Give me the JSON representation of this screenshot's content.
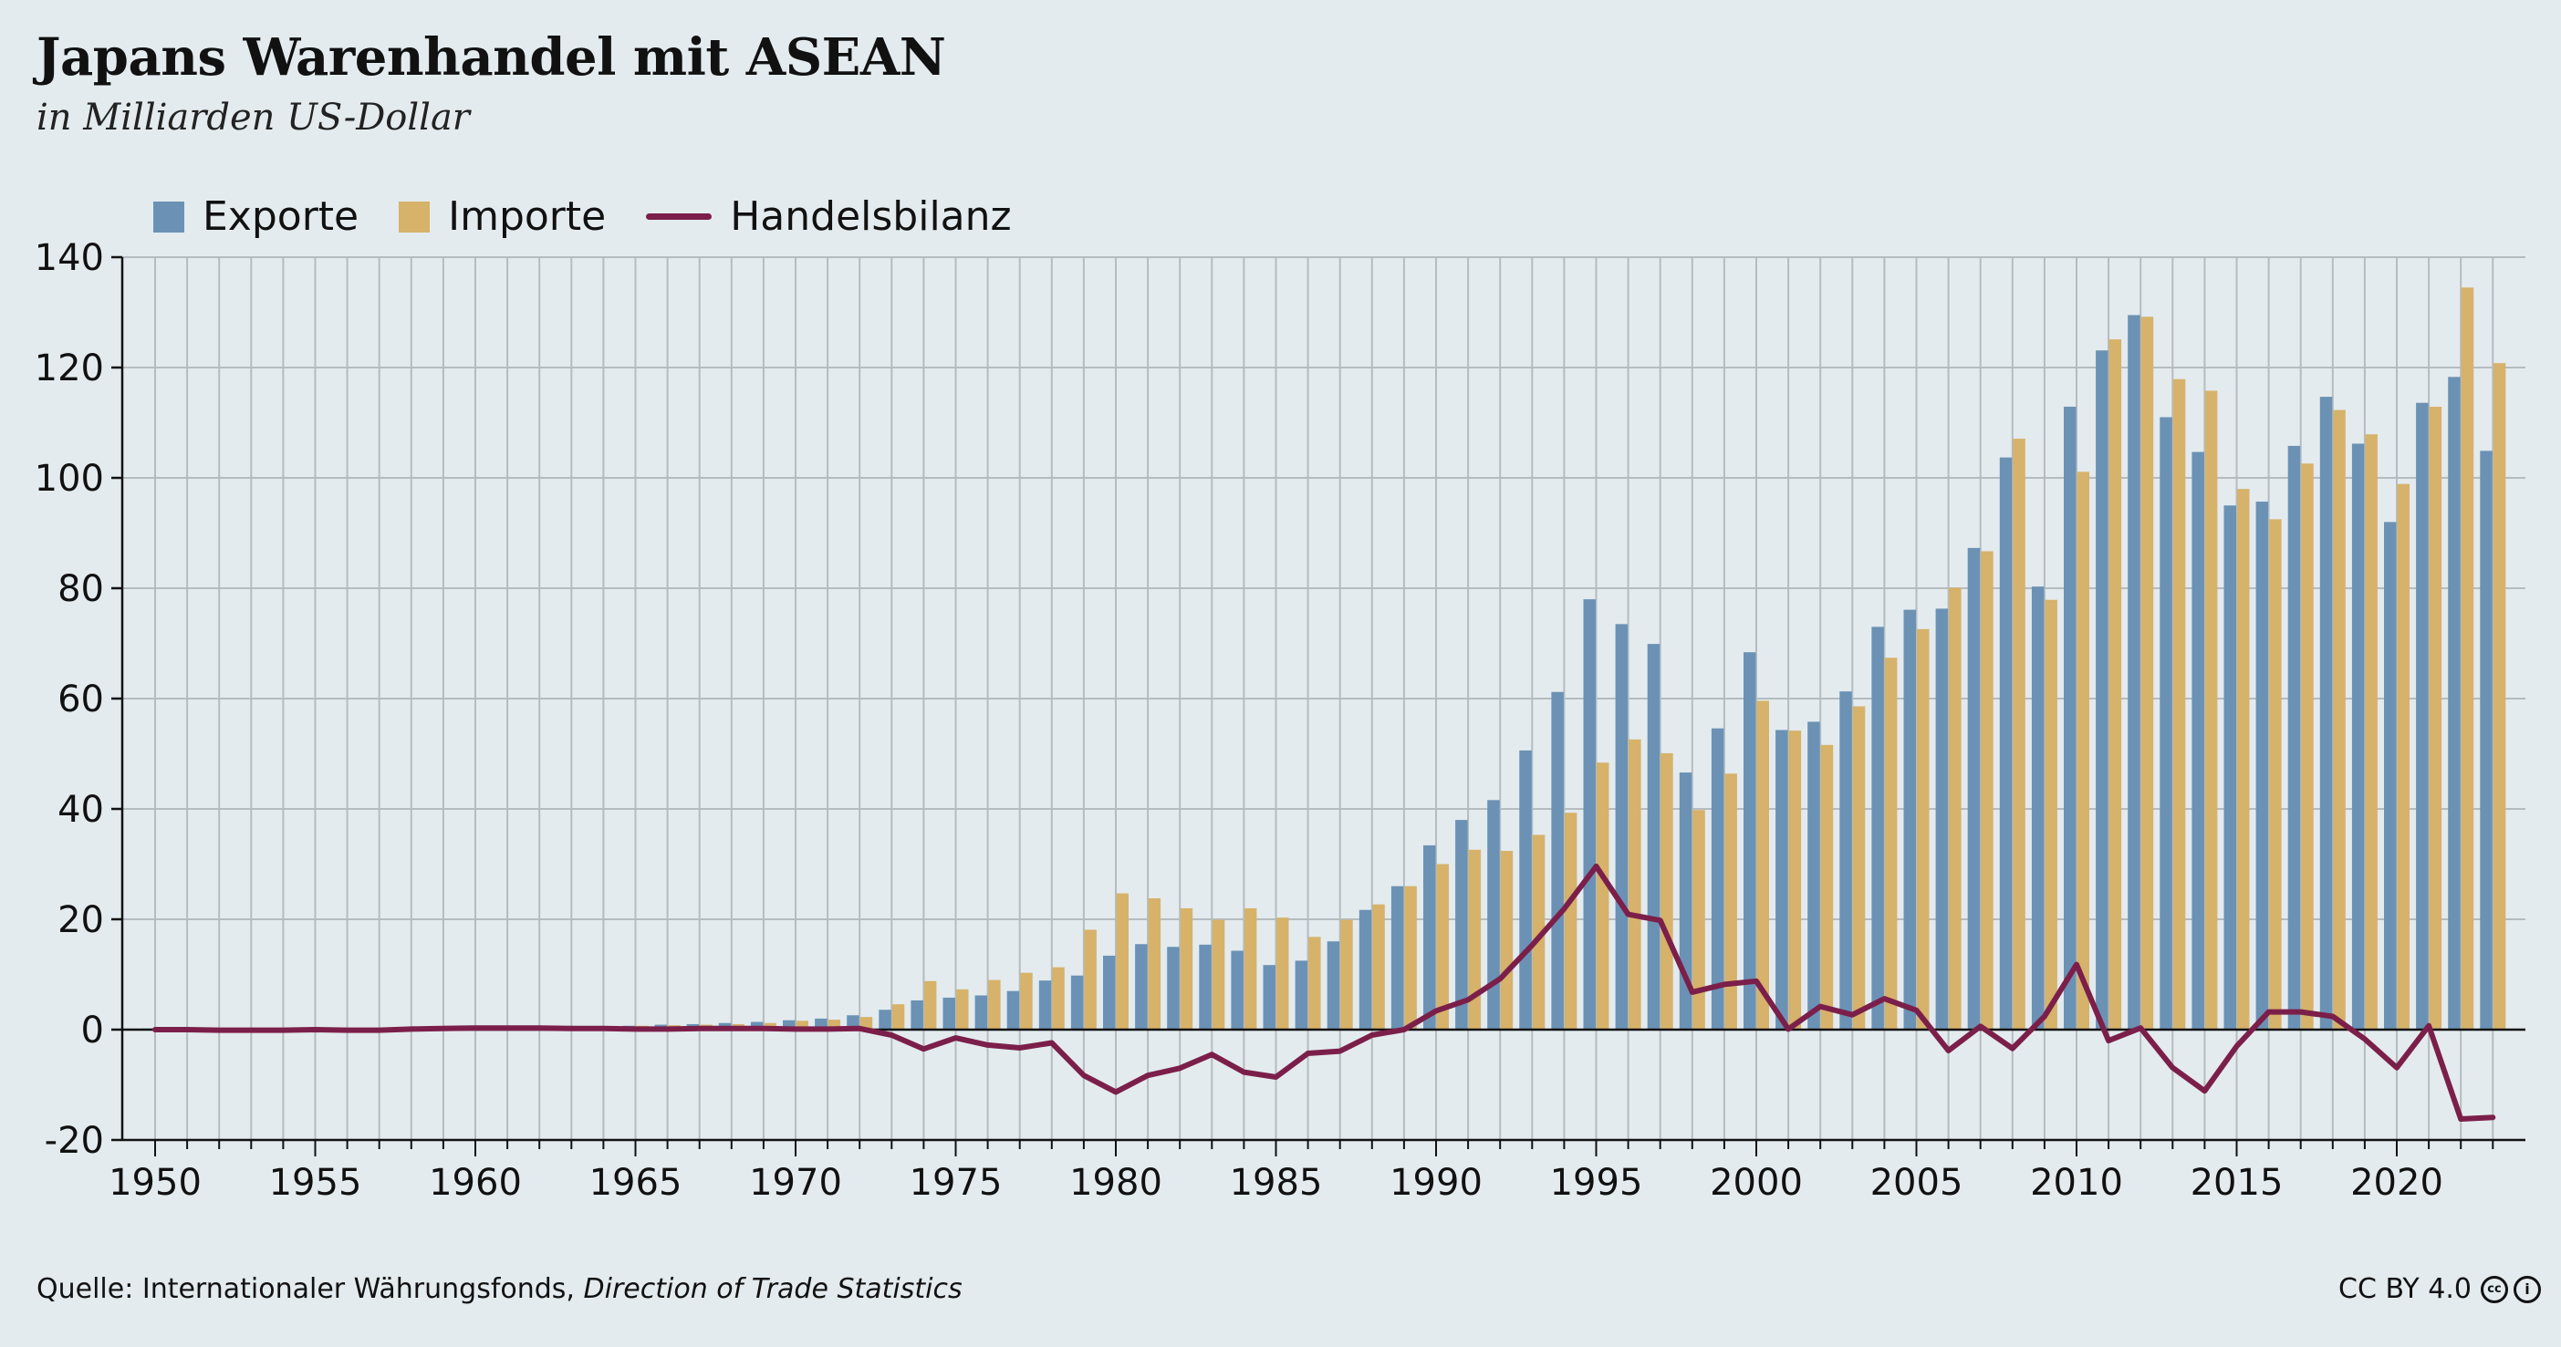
{
  "header": {
    "title": "Japans Warenhandel mit ASEAN",
    "subtitle": "in Milliarden US-Dollar"
  },
  "legend": {
    "exports": "Exporte",
    "imports": "Importe",
    "balance": "Handelsbilanz"
  },
  "colors": {
    "exports": "#6b92b5",
    "imports": "#d6b26a",
    "balance": "#7b1f4a",
    "grid": "#b5bcc0",
    "background": "#e3ebee"
  },
  "footer": {
    "source_prefix": "Quelle: Internationaler Währungsfonds, ",
    "source_title": "Direction of Trade Statistics",
    "license": "CC BY 4.0",
    "cc_icon": "cc-icon",
    "by_icon": "by-icon"
  },
  "chart_data": {
    "type": "bar",
    "xlabel": "",
    "ylabel": "",
    "xlim": [
      1950,
      2023
    ],
    "ylim": [
      -20,
      140
    ],
    "yticks": [
      -20,
      0,
      20,
      40,
      60,
      80,
      100,
      120,
      140
    ],
    "xticks": [
      1950,
      1955,
      1960,
      1965,
      1970,
      1975,
      1980,
      1985,
      1990,
      1995,
      2000,
      2005,
      2010,
      2015,
      2020
    ],
    "grid": true,
    "legend_position": "top-left",
    "x": [
      1950,
      1951,
      1952,
      1953,
      1954,
      1955,
      1956,
      1957,
      1958,
      1959,
      1960,
      1961,
      1962,
      1963,
      1964,
      1965,
      1966,
      1967,
      1968,
      1969,
      1970,
      1971,
      1972,
      1973,
      1974,
      1975,
      1976,
      1977,
      1978,
      1979,
      1980,
      1981,
      1982,
      1983,
      1984,
      1985,
      1986,
      1987,
      1988,
      1989,
      1990,
      1991,
      1992,
      1993,
      1994,
      1995,
      1996,
      1997,
      1998,
      1999,
      2000,
      2001,
      2002,
      2003,
      2004,
      2005,
      2006,
      2007,
      2008,
      2009,
      2010,
      2011,
      2012,
      2013,
      2014,
      2015,
      2016,
      2017,
      2018,
      2019,
      2020,
      2021,
      2022,
      2023
    ],
    "series": [
      {
        "name": "Exporte",
        "kind": "bar",
        "values": [
          0.2,
          0.2,
          0.2,
          0.2,
          0.2,
          0.2,
          0.3,
          0.3,
          0.3,
          0.3,
          0.4,
          0.4,
          0.4,
          0.5,
          0.6,
          0.7,
          0.9,
          1.0,
          1.2,
          1.4,
          1.7,
          2.0,
          2.6,
          3.6,
          5.3,
          5.8,
          6.2,
          7.0,
          8.9,
          9.8,
          13.4,
          15.5,
          15.0,
          15.4,
          14.3,
          11.7,
          12.5,
          16.0,
          21.7,
          26.0,
          33.4,
          38.0,
          41.6,
          50.6,
          61.2,
          78.0,
          73.5,
          69.9,
          46.6,
          54.6,
          68.4,
          54.3,
          55.8,
          61.3,
          73.0,
          76.1,
          76.3,
          87.3,
          103.7,
          80.3,
          112.9,
          123.1,
          129.5,
          111.0,
          104.7,
          95.0,
          95.7,
          105.8,
          114.7,
          106.2,
          92.0,
          113.6,
          118.3,
          104.9
        ]
      },
      {
        "name": "Importe",
        "kind": "bar",
        "values": [
          0.2,
          0.2,
          0.2,
          0.2,
          0.2,
          0.2,
          0.3,
          0.3,
          0.3,
          0.3,
          0.4,
          0.4,
          0.4,
          0.5,
          0.6,
          0.7,
          0.8,
          0.9,
          1.0,
          1.2,
          1.6,
          1.8,
          2.3,
          4.6,
          8.8,
          7.3,
          9.0,
          10.3,
          11.3,
          18.1,
          24.7,
          23.8,
          22.0,
          19.9,
          22.0,
          20.3,
          16.8,
          19.9,
          22.7,
          26.0,
          30.0,
          32.6,
          32.4,
          35.3,
          39.3,
          48.4,
          52.6,
          50.1,
          39.8,
          46.4,
          59.6,
          54.2,
          51.6,
          58.6,
          67.4,
          72.6,
          80.1,
          86.7,
          107.1,
          77.9,
          101.1,
          125.1,
          129.2,
          117.9,
          115.8,
          98.0,
          92.5,
          102.6,
          112.3,
          107.9,
          98.9,
          112.9,
          134.5,
          120.8
        ]
      },
      {
        "name": "Handelsbilanz",
        "kind": "line",
        "values": [
          0.0,
          0.0,
          -0.1,
          -0.1,
          -0.1,
          0.0,
          -0.1,
          -0.1,
          0.1,
          0.2,
          0.3,
          0.3,
          0.3,
          0.2,
          0.2,
          0.1,
          0.1,
          0.2,
          0.2,
          0.2,
          0.1,
          0.1,
          0.2,
          -1.0,
          -3.5,
          -1.5,
          -2.8,
          -3.3,
          -2.4,
          -8.3,
          -11.3,
          -8.3,
          -7.0,
          -4.5,
          -7.7,
          -8.6,
          -4.3,
          -3.9,
          -1.0,
          0.0,
          3.4,
          5.4,
          9.2,
          15.3,
          21.9,
          29.6,
          20.9,
          19.8,
          6.8,
          8.2,
          8.8,
          0.1,
          4.2,
          2.7,
          5.6,
          3.5,
          -3.8,
          0.6,
          -3.4,
          2.4,
          11.8,
          -2.0,
          0.3,
          -6.9,
          -11.1,
          -3.0,
          3.2,
          3.2,
          2.4,
          -1.7,
          -6.9,
          0.7,
          -16.2,
          -15.9
        ]
      }
    ]
  }
}
